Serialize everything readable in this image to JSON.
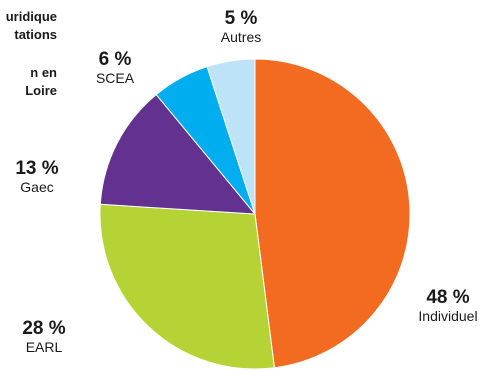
{
  "title": {
    "lines_a": [
      "uridique",
      "tations"
    ],
    "lines_b": [
      "n en",
      "Loire"
    ]
  },
  "chart_data": {
    "type": "pie",
    "slices": [
      {
        "label": "Individuel",
        "value": 48,
        "value_label": "48 %",
        "color": "#F26B21"
      },
      {
        "label": "EARL",
        "value": 28,
        "value_label": "28 %",
        "color": "#B5D334"
      },
      {
        "label": "Gaec",
        "value": 13,
        "value_label": "13 %",
        "color": "#63318F"
      },
      {
        "label": "SCEA",
        "value": 6,
        "value_label": "6 %",
        "color": "#00AEEF"
      },
      {
        "label": "Autres",
        "value": 5,
        "value_label": "5 %",
        "color": "#BDE3F7"
      }
    ]
  }
}
